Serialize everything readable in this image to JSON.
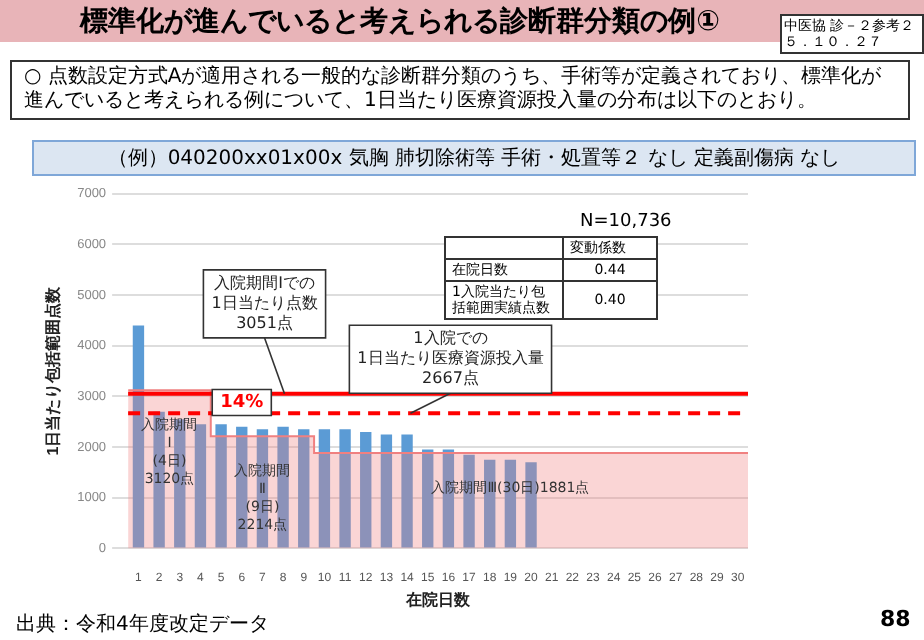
{
  "chart_data": {
    "type": "bar",
    "title": "標準化が進んでいると考えられる診断群分類の例①",
    "subtitle": "○ 点数設定方式Aが適用される一般的な診断群分類のうち、手術等が定義されており、標準化が進んでいると考えられる例について、1日当たり医療資源投入量の分布は以下のとおり。",
    "xlabel": "在院日数",
    "ylabel": "1日当たり包括範囲点数",
    "x": [
      1,
      2,
      3,
      4,
      5,
      6,
      7,
      8,
      9,
      10,
      11,
      12,
      13,
      14,
      15,
      16,
      17,
      18,
      19,
      20
    ],
    "series": [
      {
        "color": "#5b9bd5",
        "values": [
          4400,
          2700,
          2550,
          2450,
          2450,
          2400,
          2350,
          2400,
          2350,
          2350,
          2350,
          2300,
          2250,
          2250,
          1950,
          1950,
          1850,
          1750,
          1750,
          1700
        ]
      },
      {
        "type": "area",
        "color": "#f08080",
        "x": [
          0.5,
          4.5,
          4.5,
          9.5,
          9.5,
          30.5
        ],
        "values": [
          3120,
          3120,
          2214,
          2214,
          1881,
          1881
        ]
      }
    ],
    "xlim": [
      0.5,
      30.5
    ],
    "xticks": [
      1,
      2,
      3,
      4,
      5,
      6,
      7,
      8,
      9,
      10,
      11,
      12,
      13,
      14,
      15,
      16,
      17,
      18,
      19,
      20,
      21,
      22,
      23,
      24,
      25,
      26,
      27,
      28,
      29,
      30
    ],
    "ylim": [
      0,
      7000
    ],
    "yticks": [
      0,
      1000,
      2000,
      3000,
      4000,
      5000,
      6000,
      7000
    ],
    "grid": "y",
    "ref_lines": [
      {
        "axis": "y",
        "value": 3051,
        "label": "入院期間Ⅰでの\n1日当たり点数\n3051点",
        "color": "#ff0000",
        "line_style": "solid"
      },
      {
        "axis": "y",
        "value": 2667,
        "label": "1入院での\n1日当たり医療資源投入量\n2667点",
        "color": "#ff0000",
        "line_style": "dashed"
      }
    ],
    "annotations": [
      "中医協 診－２参考２",
      "５．１０．２７",
      "（例）040200xx01x00x 気胸 肺切除術等 手術・処置等２ なし 定義副傷病 なし",
      "N=10,736",
      "出典：令和4年度改定データ",
      "88",
      "変動係数",
      "在院日数",
      "0.44",
      "1入院当たり包括範囲実績点数",
      "0.40",
      {
        "text": "入院期間\nⅠ\n(4日)\n3120点",
        "x": 2.5,
        "y": 3120
      },
      {
        "text": "入院期間\nⅡ\n(9日)\n2214点",
        "x": 7,
        "y": 2214
      },
      {
        "text": "入院期間Ⅲ(30日)1881点",
        "x": 19,
        "y": 1881
      },
      {
        "text": "14%",
        "x": 6,
        "y": 2860
      }
    ]
  }
}
